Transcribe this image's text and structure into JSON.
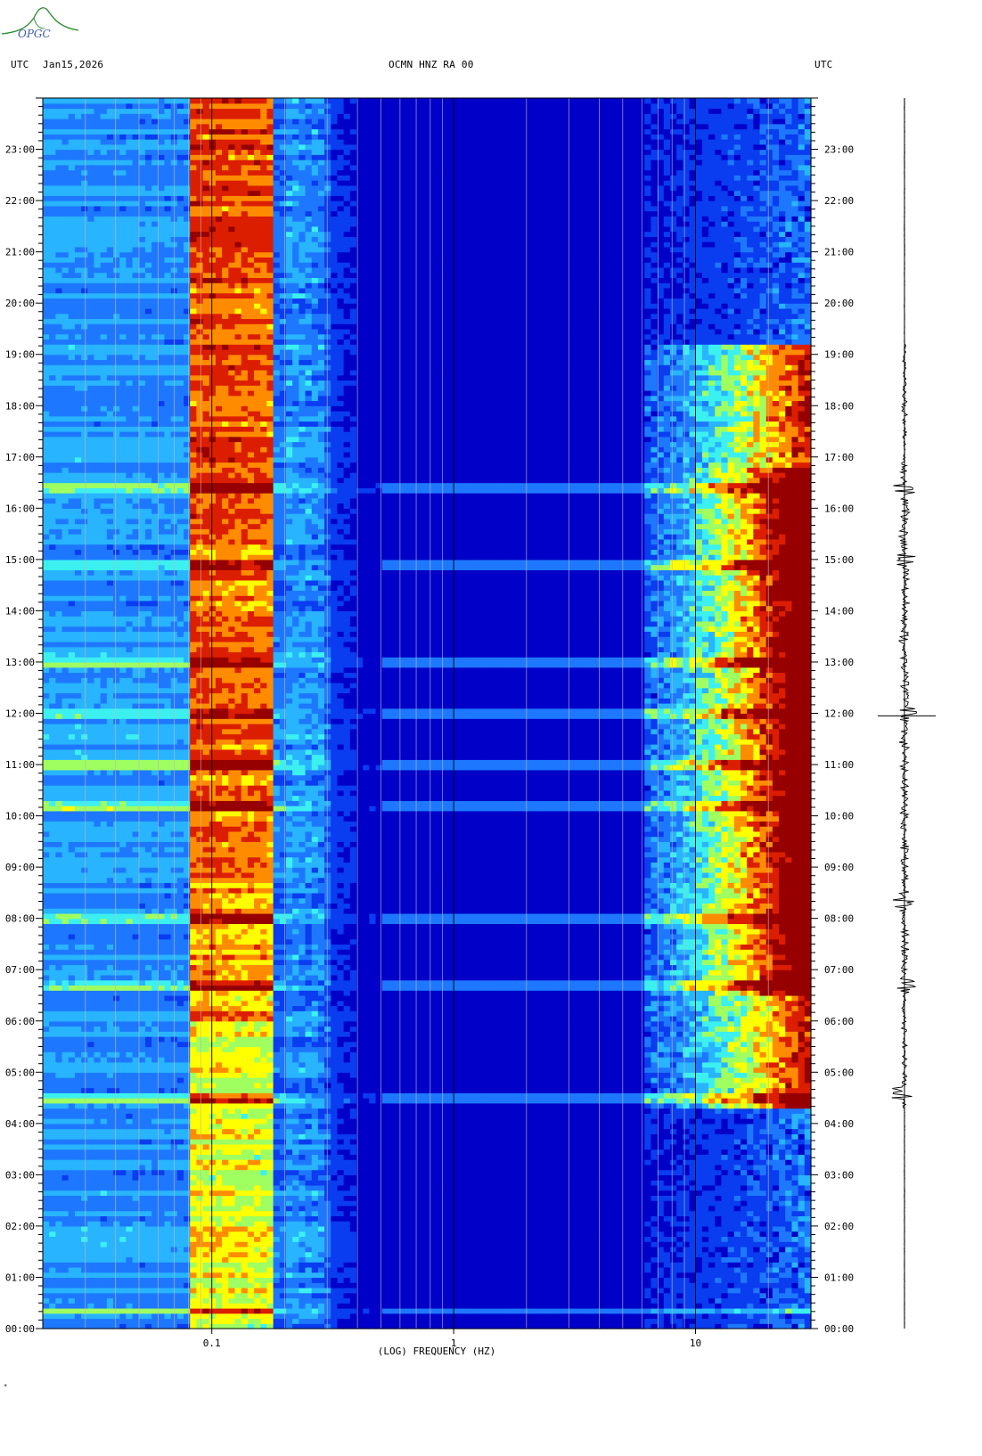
{
  "header": {
    "left_tz": "UTC",
    "date": "Jan15,2026",
    "station": "OCMN HNZ RA 00",
    "right_tz": "UTC"
  },
  "logo": {
    "text": "OPGC",
    "color": "#2e8b2e",
    "text_color": "#3a5aa8"
  },
  "footer_mark": "*",
  "chart_data": {
    "type": "heatmap",
    "title": "OCMN HNZ RA 00",
    "xlabel": "(LOG) FREQUENCY (HZ)",
    "ylabel": "",
    "x_scale": "log",
    "xlim": [
      0.02,
      30
    ],
    "x_ticks": [
      {
        "value": 0.1,
        "label": "0.1"
      },
      {
        "value": 1,
        "label": "1"
      },
      {
        "value": 10,
        "label": "10"
      }
    ],
    "ylim_hours": [
      0,
      24
    ],
    "y_ticks": [
      "00:00",
      "01:00",
      "02:00",
      "03:00",
      "04:00",
      "05:00",
      "06:00",
      "07:00",
      "08:00",
      "09:00",
      "10:00",
      "11:00",
      "12:00",
      "13:00",
      "14:00",
      "15:00",
      "16:00",
      "17:00",
      "18:00",
      "19:00",
      "20:00",
      "21:00",
      "22:00",
      "23:00"
    ],
    "colormap": [
      "#00008c",
      "#0000c8",
      "#0a3cf0",
      "#1e78ff",
      "#28b4ff",
      "#3cf0f0",
      "#a0ff60",
      "#ffff00",
      "#ff8c00",
      "#dc1e00",
      "#960000"
    ],
    "energy_bands": [
      {
        "label": "microseism",
        "freq_range_hz": [
          0.08,
          0.18
        ],
        "level": 0.55
      },
      {
        "label": "cultural noise",
        "freq_range_hz": [
          8,
          30
        ],
        "level": 0.9,
        "active_hours": [
          4.3,
          19.2
        ]
      }
    ],
    "bursts_hours": [
      0.38,
      4.5,
      6.7,
      8.0,
      10.2,
      11.0,
      12.0,
      13.0,
      14.9,
      16.4
    ],
    "seismogram_bursts_hours": [
      4.6,
      6.7,
      8.3,
      12.0,
      15.0,
      16.4
    ]
  }
}
